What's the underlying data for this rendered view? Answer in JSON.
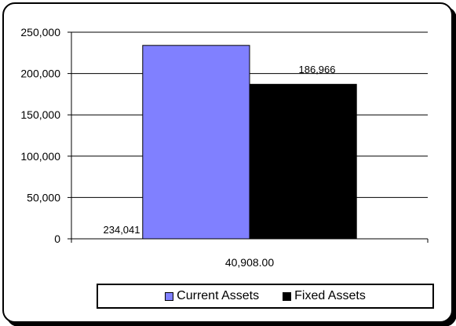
{
  "chart_data": {
    "type": "bar",
    "categories": [
      "40,908.00"
    ],
    "series": [
      {
        "name": "Current Assets",
        "values": [
          234041
        ],
        "color": "#8080ff"
      },
      {
        "name": "Fixed Assets",
        "values": [
          186966
        ],
        "color": "#000000"
      }
    ],
    "data_labels": [
      "234,041",
      "186,966"
    ],
    "y_ticks": [
      "0",
      "50,000",
      "100,000",
      "150,000",
      "200,000",
      "250,000"
    ],
    "ylim": [
      0,
      250000
    ],
    "grid": true,
    "legend_position": "bottom"
  }
}
